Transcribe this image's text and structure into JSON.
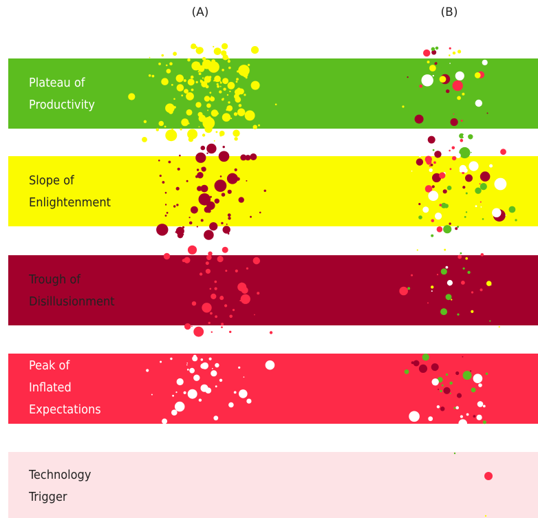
{
  "chart_data": {
    "type": "scatter",
    "columns": [
      "(A)",
      "(B)"
    ],
    "bands": [
      {
        "label": [
          "Plateau of",
          "Productivity"
        ],
        "fill": "#5cbd1f",
        "text_color": "#ffffff"
      },
      {
        "label": [
          "Slope of",
          "Enlightenment"
        ],
        "fill": "#fbfb00",
        "text_color": "#222222"
      },
      {
        "label": [
          "Trough of",
          "Disillusionment"
        ],
        "fill": "#a2002c",
        "text_color": "#222222"
      },
      {
        "label": [
          "Peak of",
          "Inflated",
          "Expectations"
        ],
        "fill": "#fe2a48",
        "text_color": "#ffffff"
      },
      {
        "label": [
          "Technology",
          "Trigger"
        ],
        "fill": "#fde3e6",
        "text_color": "#222222"
      }
    ],
    "dot_colors": {
      "productivity": "#fbfb00",
      "enlightenment": "#a2002c",
      "trough": "#fe2a48",
      "peak": "#ffffff",
      "trigger": "#fe2a48",
      "green": "#5cbd1f"
    }
  }
}
